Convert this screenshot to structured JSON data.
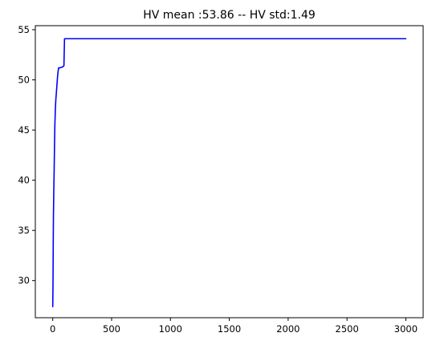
{
  "chart_data": {
    "type": "line",
    "title": "HV mean :53.86 -- HV std:1.49",
    "xlabel": "",
    "ylabel": "",
    "xlim": [
      -148,
      3147
    ],
    "ylim": [
      26.3,
      55.4
    ],
    "grid": false,
    "xticks": [
      0,
      500,
      1000,
      1500,
      2000,
      2500,
      3000
    ],
    "yticks": [
      30,
      35,
      40,
      45,
      50,
      55
    ],
    "series": [
      {
        "color": "#0000ff",
        "points": [
          [
            0,
            27.4
          ],
          [
            2,
            29.5
          ],
          [
            4,
            33.5
          ],
          [
            6,
            36.5
          ],
          [
            9,
            39.0
          ],
          [
            12,
            41.0
          ],
          [
            15,
            43.5
          ],
          [
            18,
            45.5
          ],
          [
            22,
            47.0
          ],
          [
            26,
            48.0
          ],
          [
            30,
            48.6
          ],
          [
            35,
            49.4
          ],
          [
            40,
            50.2
          ],
          [
            45,
            50.8
          ],
          [
            50,
            51.2
          ],
          [
            60,
            51.2
          ],
          [
            75,
            51.25
          ],
          [
            85,
            51.3
          ],
          [
            95,
            51.4
          ],
          [
            100,
            54.1
          ],
          [
            3000,
            54.1
          ]
        ]
      }
    ]
  }
}
